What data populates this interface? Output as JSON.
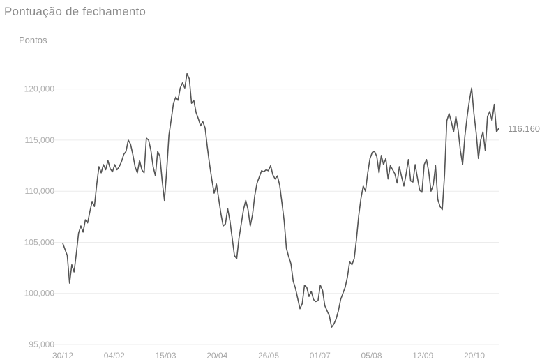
{
  "chart_data": {
    "type": "line",
    "title": "Pontuação de fechamento",
    "xlabel": "",
    "ylabel": "",
    "legend": "top-left",
    "grid": true,
    "ylim": [
      95000,
      121000
    ],
    "yticks": [
      95000,
      100000,
      105000,
      110000,
      115000,
      120000
    ],
    "ytick_labels": [
      "95,000",
      "100,000",
      "105,000",
      "110,000",
      "115,000",
      "120,000"
    ],
    "xtick_labels": [
      "30/12",
      "04/02",
      "15/03",
      "20/04",
      "26/05",
      "01/07",
      "05/08",
      "12/09",
      "20/10"
    ],
    "last_value_label": "116.160",
    "series": [
      {
        "name": "Pontos",
        "color": "#555555",
        "values": [
          104900,
          104300,
          103700,
          101000,
          102800,
          102100,
          103900,
          105900,
          106600,
          106000,
          107200,
          106900,
          108000,
          109000,
          108500,
          110600,
          112400,
          111800,
          112600,
          112100,
          113000,
          112200,
          111900,
          112600,
          112100,
          112400,
          112900,
          113600,
          113900,
          115000,
          114600,
          113600,
          112400,
          111800,
          113000,
          112100,
          111800,
          115200,
          115000,
          114000,
          112400,
          111500,
          113900,
          113400,
          111000,
          109100,
          112000,
          115500,
          117000,
          118600,
          119200,
          118900,
          120100,
          120600,
          120100,
          121500,
          121000,
          118600,
          118900,
          117700,
          117100,
          116400,
          116800,
          116200,
          114300,
          112600,
          111100,
          109800,
          110700,
          109300,
          107800,
          106600,
          106800,
          108300,
          107100,
          105400,
          103700,
          103400,
          105400,
          106800,
          108200,
          109100,
          108200,
          106600,
          107700,
          109600,
          110800,
          111400,
          112000,
          111900,
          112100,
          112000,
          112500,
          111600,
          111200,
          111500,
          110600,
          108900,
          107100,
          104400,
          103600,
          102900,
          101200,
          100500,
          99500,
          98500,
          99000,
          100800,
          100600,
          99700,
          100200,
          99400,
          99200,
          99300,
          100800,
          100300,
          98800,
          98300,
          97800,
          96700,
          97000,
          97500,
          98300,
          99400,
          100000,
          100600,
          101600,
          103100,
          102800,
          103400,
          105300,
          107600,
          109300,
          110500,
          110000,
          111800,
          113200,
          113800,
          113900,
          113400,
          111800,
          113500,
          112600,
          113200,
          111200,
          112500,
          112100,
          111700,
          110800,
          112400,
          111400,
          110500,
          111700,
          113100,
          111000,
          110900,
          112600,
          111300,
          110100,
          109900,
          112600,
          113100,
          111900,
          110000,
          110600,
          112500,
          109200,
          108500,
          108200,
          111600,
          116900,
          117600,
          116800,
          115800,
          117300,
          116000,
          114000,
          112600,
          115400,
          117300,
          118900,
          120100,
          117600,
          115700,
          113200,
          115000,
          115800,
          114000,
          117300,
          117800,
          116900,
          118500,
          115800,
          116160
        ]
      }
    ]
  }
}
